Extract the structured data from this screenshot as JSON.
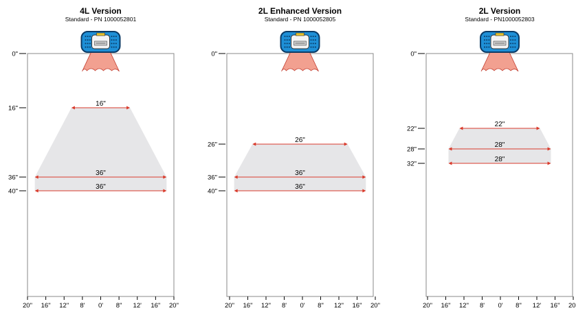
{
  "panels": [
    {
      "title": "4L Version",
      "subtitle": "Standard - PN 1000052801",
      "depth_ticks": [
        "0\"",
        "16\"",
        "36\"",
        "40\""
      ],
      "x_ticks": [
        "20\"",
        "16\"",
        "12\"",
        "8'",
        "0'",
        "8\"",
        "12'",
        "16\"",
        "20\""
      ],
      "fields": [
        {
          "depth_in": 16,
          "width_in": 16,
          "label": "16\""
        },
        {
          "depth_in": 36,
          "width_in": 36,
          "label": "36\""
        },
        {
          "depth_in": 40,
          "width_in": 36,
          "label": "36\""
        }
      ]
    },
    {
      "title": "2L Enhanced Version",
      "subtitle": "Standard - PN 1000052805",
      "depth_ticks": [
        "0\"",
        "26\"",
        "36\"",
        "40\""
      ],
      "x_ticks": [
        "20\"",
        "16\"",
        "12\"",
        "8'",
        "0'",
        "8\"",
        "12\"",
        "16\"",
        "20\""
      ],
      "fields": [
        {
          "depth_in": 26,
          "width_in": 26,
          "label": "26\""
        },
        {
          "depth_in": 36,
          "width_in": 36,
          "label": "36\""
        },
        {
          "depth_in": 40,
          "width_in": 36,
          "label": "36\""
        }
      ]
    },
    {
      "title": "2L Version",
      "subtitle": "Standard - PN1000052803",
      "depth_ticks": [
        "0\"",
        "22\"",
        "28\"",
        "32\""
      ],
      "x_ticks": [
        "20\"",
        "16\"",
        "12\"",
        "8'",
        "0'",
        "8\"",
        "12'",
        "16\"",
        "20\""
      ],
      "fields": [
        {
          "depth_in": 22,
          "width_in": 22,
          "label": "22\""
        },
        {
          "depth_in": 28,
          "width_in": 28,
          "label": "28\""
        },
        {
          "depth_in": 32,
          "width_in": 28,
          "label": "28\""
        }
      ]
    }
  ],
  "colors": {
    "field_fill": "#e6e6e8",
    "arrow": "#d93a2b",
    "beam_fill": "#f2a090",
    "beam_stroke": "#c0392b",
    "device_blue": "#1e8fd6",
    "device_dark": "#0b3b66",
    "axis": "#8a8a8a"
  },
  "icons": [
    "barcode-scanner-icon",
    "scan-beam-icon"
  ]
}
